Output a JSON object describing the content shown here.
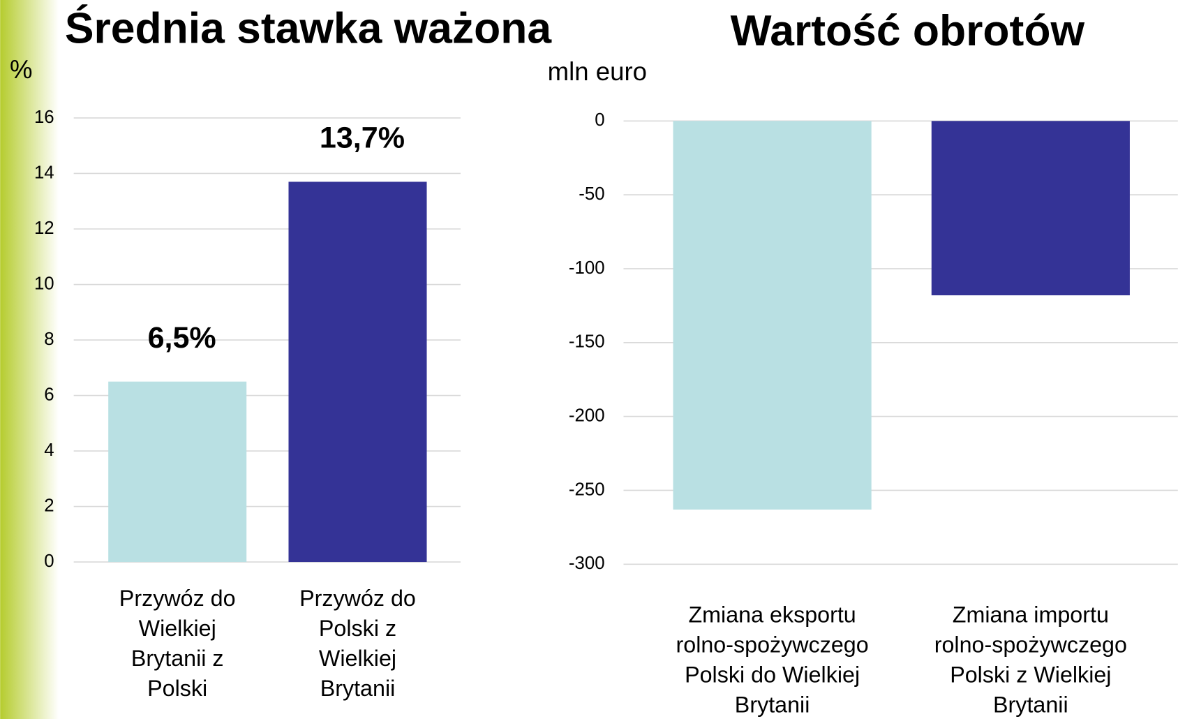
{
  "chart_data": [
    {
      "type": "bar",
      "title": "Średnia stawka ważona",
      "y_label": "%",
      "categories": [
        "Przywóz do Wielkiej Brytanii z Polski",
        "Przywóz do Polski z Wielkiej Brytanii"
      ],
      "values": [
        6.5,
        13.7
      ],
      "value_labels": [
        "6,5%",
        "13,7%"
      ],
      "colors": [
        "#b9e0e3",
        "#343396"
      ],
      "ylim": [
        0,
        16
      ],
      "yticks": [
        0,
        2,
        4,
        6,
        8,
        10,
        12,
        14,
        16
      ],
      "grid": true
    },
    {
      "type": "bar",
      "title": "Wartość obrotów",
      "y_label": "mln euro",
      "categories": [
        "Zmiana eksportu rolno-spożywczego Polski do Wielkiej Brytanii",
        "Zmiana importu rolno-spożywczego Polski z Wielkiej Brytanii"
      ],
      "values": [
        -263,
        -118
      ],
      "colors": [
        "#b9e0e3",
        "#343396"
      ],
      "ylim": [
        -300,
        0
      ],
      "yticks": [
        0,
        -50,
        -100,
        -150,
        -200,
        -250,
        -300
      ],
      "grid": true
    }
  ]
}
